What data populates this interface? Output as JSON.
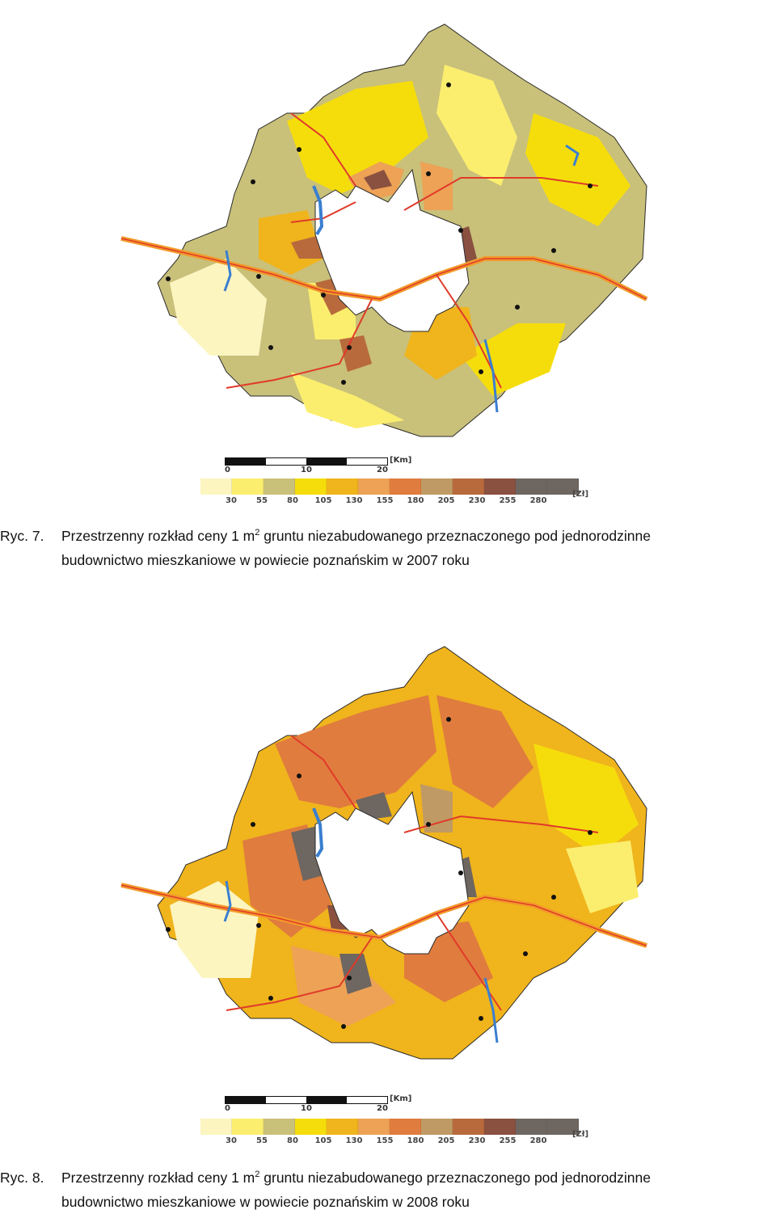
{
  "figures": [
    {
      "id": "2007",
      "caption_number": "Ryc. 7.",
      "caption_line1": "Przestrzenny rozkład ceny 1 m",
      "caption_sup": "2",
      "caption_line1_rest": " gruntu niezabudowanego przeznaczonego pod jednorodzinne",
      "caption_line2": "budownictwo mieszkaniowe w powiecie poznańskim w 2007 roku"
    },
    {
      "id": "2008",
      "caption_number": "Ryc. 8.",
      "caption_line1": "Przestrzenny rozkład ceny 1 m",
      "caption_sup": "2",
      "caption_line1_rest": " gruntu niezabudowanego przeznaczonego pod jednorodzinne",
      "caption_line2": "budownictwo mieszkaniowe w powiecie poznańskim w 2008 roku"
    }
  ],
  "scale": {
    "ticks": [
      "0",
      "10",
      "20"
    ],
    "unit": "[Km]"
  },
  "legend": {
    "unit": "[Zł]",
    "breaks": [
      "30",
      "55",
      "80",
      "105",
      "130",
      "155",
      "180",
      "205",
      "230",
      "255",
      "280"
    ],
    "colors": [
      "#fdf5c0",
      "#fbee6e",
      "#c9c07a",
      "#f5dd0c",
      "#f0b41c",
      "#eda256",
      "#e07c3e",
      "#c09a64",
      "#b86a3c",
      "#8a5040",
      "#6e6660",
      "#6e6660"
    ]
  },
  "colors": {
    "road": "#e03a2a",
    "motorway": "#f29a2a",
    "water": "#3a7fd0",
    "border": "#4a8a50"
  }
}
